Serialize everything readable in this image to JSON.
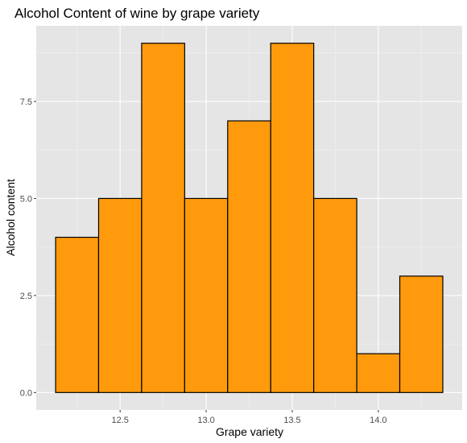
{
  "chart_data": {
    "type": "bar",
    "title": "Alcohol Content of wine by grape variety",
    "xlabel": "Grape variety",
    "ylabel": "Alcohol content",
    "bins": [
      {
        "x0": 12.125,
        "x1": 12.375,
        "count": 4
      },
      {
        "x0": 12.375,
        "x1": 12.625,
        "count": 5
      },
      {
        "x0": 12.625,
        "x1": 12.875,
        "count": 9
      },
      {
        "x0": 12.875,
        "x1": 13.125,
        "count": 5
      },
      {
        "x0": 13.125,
        "x1": 13.375,
        "count": 7
      },
      {
        "x0": 13.375,
        "x1": 13.625,
        "count": 9
      },
      {
        "x0": 13.625,
        "x1": 13.875,
        "count": 5
      },
      {
        "x0": 13.875,
        "x1": 14.125,
        "count": 1
      },
      {
        "x0": 14.125,
        "x1": 14.375,
        "count": 3
      }
    ],
    "xlim": [
      12.0125,
      14.4875
    ],
    "ylim": [
      -0.45,
      9.45
    ],
    "x_ticks": [
      12.5,
      13.0,
      13.5,
      14.0
    ],
    "x_tick_labels": [
      "12.5",
      "13.0",
      "13.5",
      "14.0"
    ],
    "y_ticks": [
      0,
      2.5,
      5,
      7.5
    ],
    "y_tick_labels": [
      "0.0",
      "2.5",
      "5.0",
      "7.5"
    ],
    "grid": true,
    "colors": {
      "bar_fill": "#FF9A0D",
      "bar_stroke": "#000000",
      "panel_bg": "#E5E5E5",
      "grid_major": "#FFFFFF",
      "tick_text": "#4D4D4D"
    }
  }
}
